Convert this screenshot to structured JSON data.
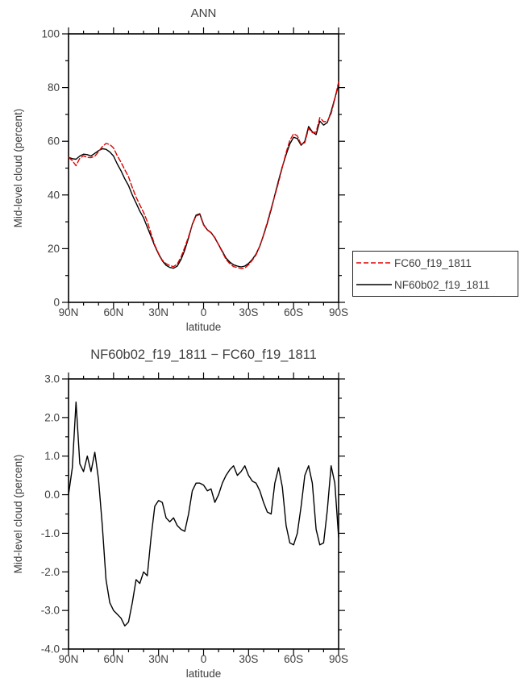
{
  "colors": {
    "background": "#ffffff",
    "text": "#3f3f3f",
    "axis": "#000000",
    "series_red": "#dd0000",
    "series_black": "#000000"
  },
  "chart_data": [
    {
      "name": "ann",
      "type": "line",
      "title": "ANN",
      "xlabel": "latitude",
      "ylabel": "Mid-level cloud (percent)",
      "xlim": [
        90,
        -90
      ],
      "ylim": [
        0,
        100
      ],
      "grid": false,
      "x_major_ticks": [
        {
          "v": 90,
          "label": "90N"
        },
        {
          "v": 60,
          "label": "60N"
        },
        {
          "v": 30,
          "label": "30N"
        },
        {
          "v": 0,
          "label": "0"
        },
        {
          "v": -30,
          "label": "30S"
        },
        {
          "v": -60,
          "label": "60S"
        },
        {
          "v": -90,
          "label": "90S"
        }
      ],
      "y_major_ticks": [
        {
          "v": 0,
          "label": "0"
        },
        {
          "v": 20,
          "label": "20"
        },
        {
          "v": 40,
          "label": "40"
        },
        {
          "v": 60,
          "label": "60"
        },
        {
          "v": 80,
          "label": "80"
        },
        {
          "v": 100,
          "label": "100"
        }
      ],
      "x_minor_step": 10,
      "y_minor_step": 10,
      "x": [
        90,
        87.5,
        85,
        82.5,
        80,
        77.5,
        75,
        72.5,
        70,
        67.5,
        65,
        62.5,
        60,
        57.5,
        55,
        52.5,
        50,
        47.5,
        45,
        42.5,
        40,
        37.5,
        35,
        32.5,
        30,
        27.5,
        25,
        22.5,
        20,
        17.5,
        15,
        12.5,
        10,
        7.5,
        5,
        2.5,
        0,
        -2.5,
        -5,
        -7.5,
        -10,
        -12.5,
        -15,
        -17.5,
        -20,
        -22.5,
        -25,
        -27.5,
        -30,
        -32.5,
        -35,
        -37.5,
        -40,
        -42.5,
        -45,
        -47.5,
        -50,
        -52.5,
        -55,
        -57.5,
        -60,
        -62.5,
        -65,
        -67.5,
        -70,
        -72.5,
        -75,
        -77.5,
        -80,
        -82.5,
        -85,
        -87.5,
        -90
      ],
      "series": [
        {
          "name": "FC60_f19_1811",
          "color": "#dd0000",
          "dash": "6,3",
          "values": [
            54.0,
            52.8,
            50.9,
            53.7,
            54.6,
            54.0,
            53.9,
            54.4,
            56.1,
            58.0,
            59.2,
            58.8,
            57.5,
            54.6,
            52.2,
            49.4,
            46.8,
            42.8,
            39.2,
            36.3,
            33.5,
            30.1,
            25.6,
            21.3,
            18.2,
            15.7,
            14.4,
            13.7,
            13.3,
            14.3,
            16.9,
            20.5,
            24.5,
            28.9,
            32.2,
            32.7,
            28.8,
            26.9,
            25.9,
            24.2,
            21.5,
            18.7,
            16.0,
            14.4,
            13.3,
            13.0,
            12.6,
            12.8,
            14.0,
            15.7,
            17.7,
            20.9,
            25.2,
            29.9,
            35.0,
            39.7,
            44.8,
            50.3,
            55.8,
            60.3,
            62.8,
            62.0,
            58.8,
            59.5,
            64.8,
            63.2,
            63.4,
            68.8,
            67.3,
            67.4,
            70.3,
            75.7,
            82.1
          ]
        },
        {
          "name": "NF60b02_f19_1811",
          "color": "#000000",
          "dash": "",
          "values": [
            54.0,
            53.5,
            53.3,
            54.5,
            55.2,
            55.0,
            54.5,
            55.5,
            56.5,
            57.2,
            57.0,
            56.0,
            54.5,
            51.5,
            49.0,
            46.0,
            43.5,
            40.0,
            37.0,
            34.0,
            31.5,
            28.0,
            24.5,
            21.0,
            18.0,
            15.5,
            13.8,
            13.0,
            12.7,
            13.5,
            16.0,
            19.5,
            24.0,
            29.0,
            32.5,
            33.0,
            29.0,
            27.0,
            26.0,
            24.0,
            21.5,
            19.0,
            16.5,
            15.0,
            14.0,
            13.5,
            13.2,
            13.5,
            14.5,
            16.0,
            18.0,
            21.0,
            25.0,
            29.5,
            34.5,
            40.0,
            45.5,
            50.5,
            55.0,
            59.0,
            61.5,
            61.0,
            58.5,
            60.0,
            65.5,
            63.5,
            62.5,
            67.5,
            66.0,
            67.0,
            71.0,
            76.0,
            81.0
          ]
        }
      ],
      "legend": {
        "position": "outside-right",
        "entries": [
          "FC60_f19_1811",
          "NF60b02_f19_1811"
        ]
      }
    },
    {
      "name": "difference",
      "type": "line",
      "title": "NF60b02_f19_1811 − FC60_f19_1811",
      "xlabel": "latitude",
      "ylabel": "Mid-level cloud (percent)",
      "xlim": [
        90,
        -90
      ],
      "ylim": [
        -4,
        3
      ],
      "grid": false,
      "x_major_ticks": [
        {
          "v": 90,
          "label": "90N"
        },
        {
          "v": 60,
          "label": "60N"
        },
        {
          "v": 30,
          "label": "30N"
        },
        {
          "v": 0,
          "label": "0"
        },
        {
          "v": -30,
          "label": "30S"
        },
        {
          "v": -60,
          "label": "60S"
        },
        {
          "v": -90,
          "label": "90S"
        }
      ],
      "y_major_ticks": [
        {
          "v": -4,
          "label": "-4.0"
        },
        {
          "v": -3,
          "label": "-3.0"
        },
        {
          "v": -2,
          "label": "-2.0"
        },
        {
          "v": -1,
          "label": "-1.0"
        },
        {
          "v": 0,
          "label": "0.0"
        },
        {
          "v": 1,
          "label": "1.0"
        },
        {
          "v": 2,
          "label": "2.0"
        },
        {
          "v": 3,
          "label": "3.0"
        }
      ],
      "x_minor_step": 10,
      "y_minor_step": 0.5,
      "x": [
        90,
        87.5,
        85,
        82.5,
        80,
        77.5,
        75,
        72.5,
        70,
        67.5,
        65,
        62.5,
        60,
        57.5,
        55,
        52.5,
        50,
        47.5,
        45,
        42.5,
        40,
        37.5,
        35,
        32.5,
        30,
        27.5,
        25,
        22.5,
        20,
        17.5,
        15,
        12.5,
        10,
        7.5,
        5,
        2.5,
        0,
        -2.5,
        -5,
        -7.5,
        -10,
        -12.5,
        -15,
        -17.5,
        -20,
        -22.5,
        -25,
        -27.5,
        -30,
        -32.5,
        -35,
        -37.5,
        -40,
        -42.5,
        -45,
        -47.5,
        -50,
        -52.5,
        -55,
        -57.5,
        -60,
        -62.5,
        -65,
        -67.5,
        -70,
        -72.5,
        -75,
        -77.5,
        -80,
        -82.5,
        -85,
        -87.5,
        -90
      ],
      "series": [
        {
          "name": "NF60b02_f19_1811 minus FC60_f19_1811",
          "color": "#000000",
          "dash": "",
          "values": [
            0.0,
            0.7,
            2.4,
            0.8,
            0.6,
            1.0,
            0.6,
            1.1,
            0.4,
            -0.8,
            -2.2,
            -2.8,
            -3.0,
            -3.1,
            -3.2,
            -3.4,
            -3.3,
            -2.8,
            -2.2,
            -2.3,
            -2.0,
            -2.1,
            -1.1,
            -0.3,
            -0.15,
            -0.2,
            -0.6,
            -0.7,
            -0.6,
            -0.8,
            -0.9,
            -0.95,
            -0.5,
            0.1,
            0.3,
            0.3,
            0.25,
            0.1,
            0.15,
            -0.2,
            0.0,
            0.3,
            0.5,
            0.65,
            0.75,
            0.5,
            0.6,
            0.75,
            0.5,
            0.35,
            0.3,
            0.1,
            -0.2,
            -0.45,
            -0.5,
            0.3,
            0.7,
            0.2,
            -0.8,
            -1.25,
            -1.3,
            -1.0,
            -0.3,
            0.5,
            0.75,
            0.3,
            -0.9,
            -1.3,
            -1.25,
            -0.4,
            0.75,
            0.3,
            -1.1
          ]
        }
      ],
      "legend": {
        "position": "none",
        "entries": []
      }
    }
  ]
}
